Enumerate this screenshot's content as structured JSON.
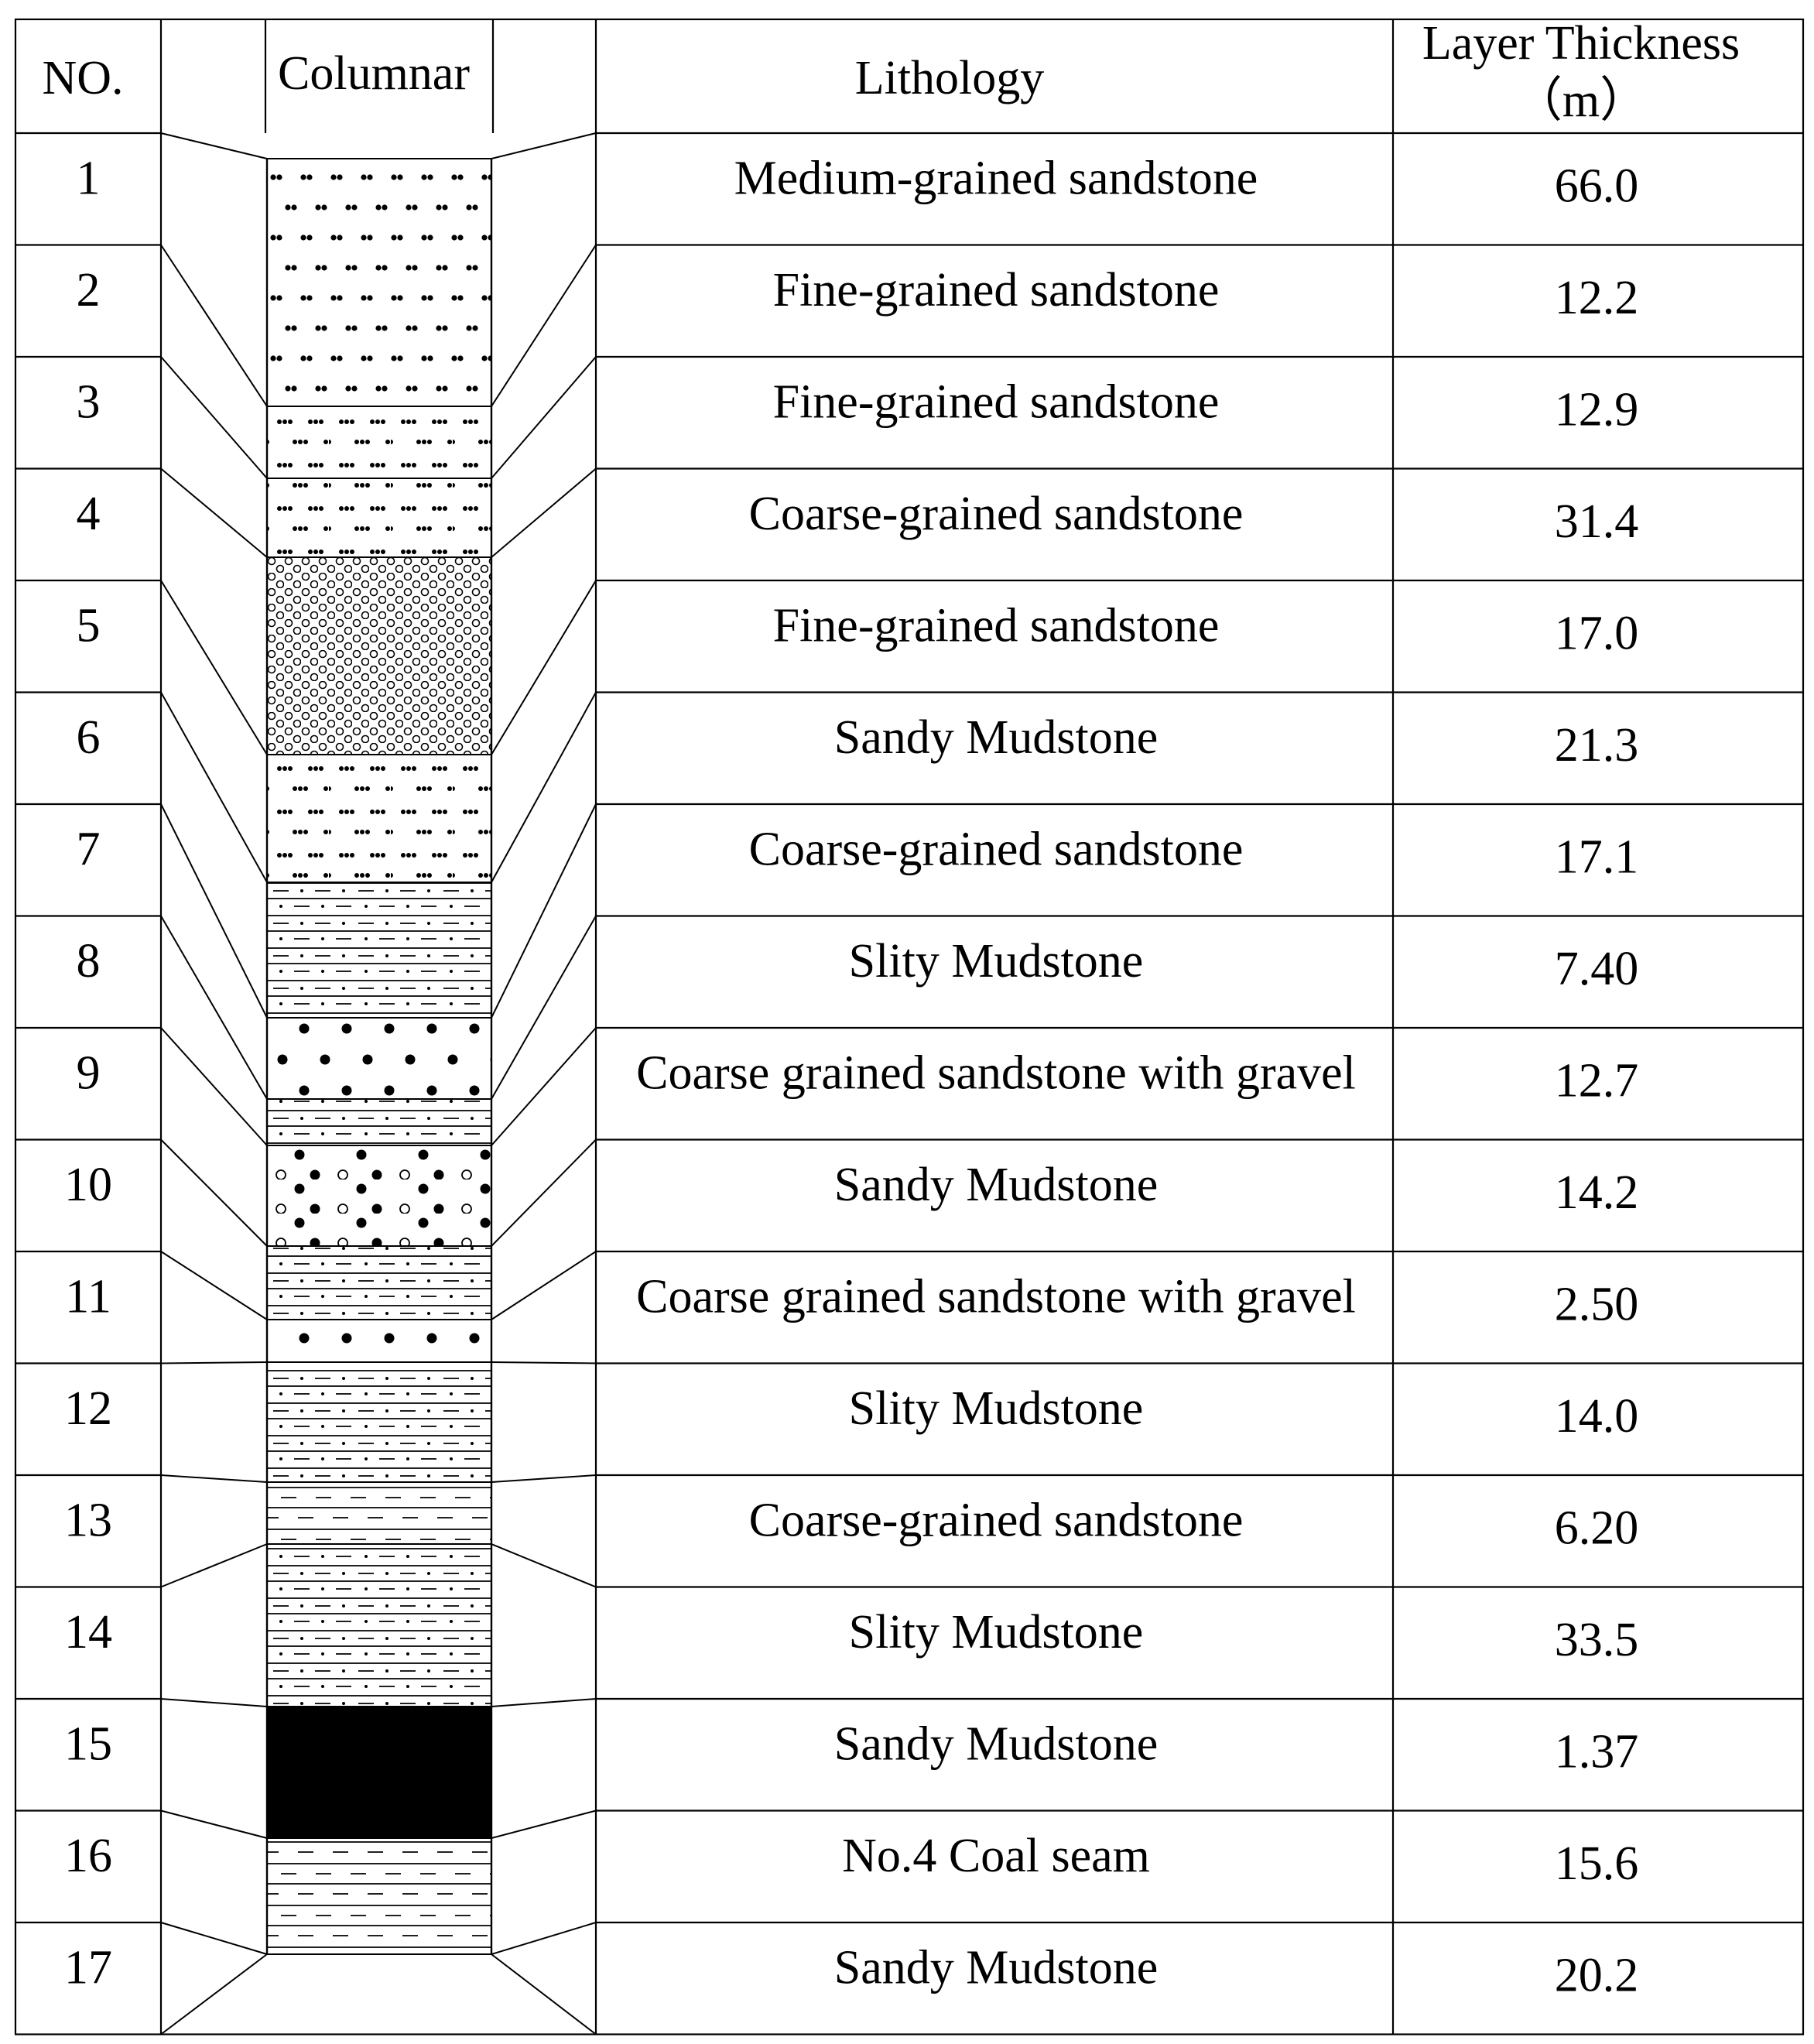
{
  "table": {
    "headers": {
      "no": "NO.",
      "columnar": "Columnar",
      "lithology": "Lithology",
      "thickness_line1": "Layer Thickness",
      "thickness_line2": "（m）"
    },
    "rows": [
      {
        "no": "1",
        "lithology": "Medium-grained sandstone",
        "thickness": "66.0"
      },
      {
        "no": "2",
        "lithology": "Fine-grained sandstone",
        "thickness": "12.2"
      },
      {
        "no": "3",
        "lithology": "Fine-grained sandstone",
        "thickness": "12.9"
      },
      {
        "no": "4",
        "lithology": "Coarse-grained sandstone",
        "thickness": "31.4"
      },
      {
        "no": "5",
        "lithology": "Fine-grained sandstone",
        "thickness": "17.0"
      },
      {
        "no": "6",
        "lithology": "Sandy Mudstone",
        "thickness": "21.3"
      },
      {
        "no": "7",
        "lithology": "Coarse-grained sandstone",
        "thickness": "17.1"
      },
      {
        "no": "8",
        "lithology": "Slity Mudstone",
        "thickness": "7.40"
      },
      {
        "no": "9",
        "lithology": "Coarse grained sandstone with gravel",
        "thickness": "12.7"
      },
      {
        "no": "10",
        "lithology": "Sandy Mudstone",
        "thickness": "14.2"
      },
      {
        "no": "11",
        "lithology": "Coarse grained sandstone with gravel",
        "thickness": "2.50"
      },
      {
        "no": "12",
        "lithology": "Slity Mudstone",
        "thickness": "14.0"
      },
      {
        "no": "13",
        "lithology": "Coarse-grained sandstone",
        "thickness": "6.20"
      },
      {
        "no": "14",
        "lithology": "Slity Mudstone",
        "thickness": "33.5"
      },
      {
        "no": "15",
        "lithology": "Sandy Mudstone",
        "thickness": "1.37"
      },
      {
        "no": "16",
        "lithology": "No.4 Coal seam",
        "thickness": "15.6"
      },
      {
        "no": "17",
        "lithology": "Sandy Mudstone",
        "thickness": "20.2"
      }
    ]
  },
  "columnar": {
    "line_color": "#000000",
    "coal_color": "#000000",
    "strata": [
      {
        "pattern": "medium-sandstone"
      },
      {
        "pattern": "fine-sandstone"
      },
      {
        "pattern": "fine-sandstone"
      },
      {
        "pattern": "coarse-sandstone"
      },
      {
        "pattern": "fine-sandstone"
      },
      {
        "pattern": "sandy-mudstone"
      },
      {
        "pattern": "coarse-sandstone"
      },
      {
        "pattern": "silty-mudstone"
      },
      {
        "pattern": "gravel-sandstone"
      },
      {
        "pattern": "sandy-mudstone"
      },
      {
        "pattern": "gravel-sandstone"
      },
      {
        "pattern": "silty-mudstone"
      },
      {
        "pattern": "coarse-sandstone"
      },
      {
        "pattern": "silty-mudstone"
      },
      {
        "pattern": "sandy-mudstone"
      },
      {
        "pattern": "coal-seam"
      },
      {
        "pattern": "sandy-mudstone"
      }
    ]
  }
}
